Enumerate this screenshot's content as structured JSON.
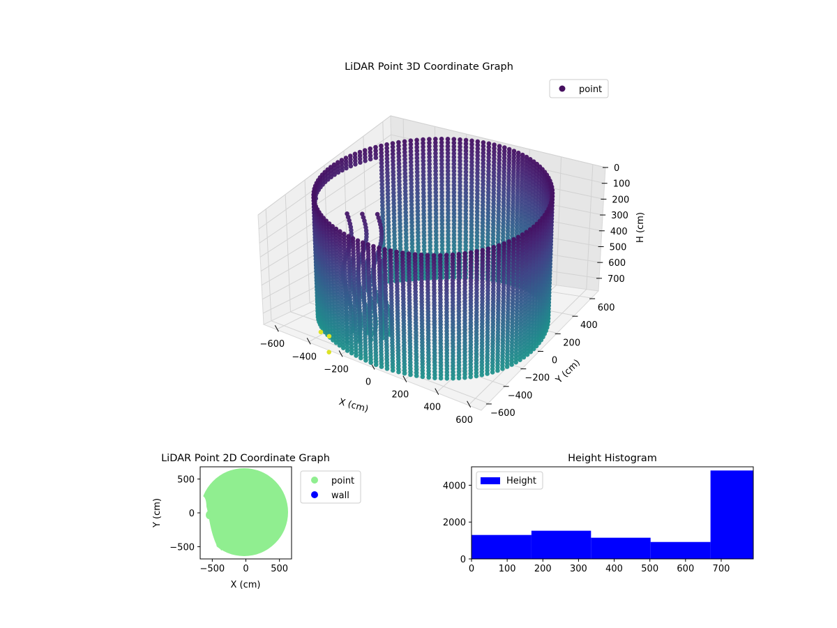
{
  "chart_data": [
    {
      "type": "scatter",
      "projection": "3d",
      "title": "LiDAR Point 3D Coordinate Graph",
      "xlabel": "X (cm)",
      "ylabel": "Y (cm)",
      "zlabel": "H (cm)",
      "x_ticks": [
        "−600",
        "−400",
        "−200",
        "0",
        "200",
        "400",
        "600"
      ],
      "y_ticks": [
        "−600",
        "−400",
        "−200",
        "0",
        "200",
        "400",
        "600"
      ],
      "z_ticks": [
        "0",
        "100",
        "200",
        "300",
        "400",
        "500",
        "600",
        "700"
      ],
      "xlim": [
        -680,
        680
      ],
      "ylim": [
        -680,
        680
      ],
      "zlim": [
        0,
        780
      ],
      "z_inverted": true,
      "legend": {
        "position": "top-right",
        "entries": [
          "point"
        ]
      },
      "colormap": "viridis",
      "structure": "cylindrical wall of points, radius ~640 cm, height 0-780 cm, with an opening and interior structure near x=-300..-100"
    },
    {
      "type": "scatter",
      "title": "LiDAR Point 2D Coordinate Graph",
      "xlabel": "X (cm)",
      "ylabel": "Y (cm)",
      "x_ticks": [
        "−500",
        "0",
        "500"
      ],
      "y_ticks": [
        "500",
        "0",
        "−500"
      ],
      "xlim": [
        -680,
        680
      ],
      "ylim": [
        -680,
        680
      ],
      "series": [
        {
          "name": "point",
          "color": "#90ee90",
          "shape": "filled disk, radius ~620 cm, with a notch on the left side"
        },
        {
          "name": "wall",
          "color": "#0000ff"
        }
      ],
      "legend": {
        "position": "outside-right",
        "entries": [
          "point",
          "wall"
        ]
      }
    },
    {
      "type": "bar",
      "title": "Height Histogram",
      "xlabel": "",
      "ylabel": "",
      "x_ticks": [
        "0",
        "100",
        "200",
        "300",
        "400",
        "500",
        "600",
        "700"
      ],
      "y_ticks": [
        "0",
        "2000",
        "4000"
      ],
      "xlim": [
        0,
        790
      ],
      "ylim": [
        0,
        5000
      ],
      "bin_edges": [
        0,
        168,
        335,
        502,
        670,
        790
      ],
      "values": [
        1300,
        1530,
        1150,
        920,
        4800
      ],
      "series": [
        {
          "name": "Height",
          "color": "#0000ff"
        }
      ],
      "legend": {
        "position": "top-left",
        "entries": [
          "Height"
        ]
      }
    }
  ]
}
